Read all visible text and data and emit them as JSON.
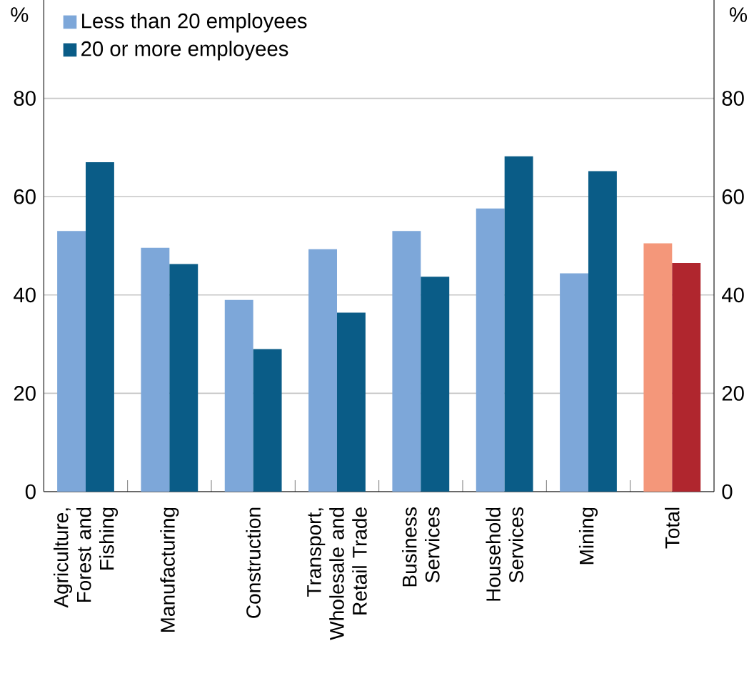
{
  "chart_data": {
    "type": "bar",
    "ylabel": "%",
    "y2label": "%",
    "categories": [
      "Agriculture, Forest and Fishing",
      "Manufacturing",
      "Construction",
      "Transport, Wholesale and Retail Trade",
      "Business Services",
      "Household Services",
      "Mining",
      "Total"
    ],
    "series": [
      {
        "name": "Less than 20 employees",
        "color": "#7da7d9",
        "colors": [
          "#7da7d9",
          "#7da7d9",
          "#7da7d9",
          "#7da7d9",
          "#7da7d9",
          "#7da7d9",
          "#7da7d9",
          "#f4977a"
        ],
        "values": [
          53.0,
          49.6,
          39.0,
          49.3,
          53.0,
          57.6,
          44.4,
          50.5
        ]
      },
      {
        "name": "20 or more employees",
        "color": "#0a5c87",
        "colors": [
          "#0a5c87",
          "#0a5c87",
          "#0a5c87",
          "#0a5c87",
          "#0a5c87",
          "#0a5c87",
          "#0a5c87",
          "#b0262e"
        ],
        "values": [
          67.0,
          46.3,
          29.0,
          36.4,
          43.7,
          68.2,
          65.2,
          46.5
        ]
      }
    ],
    "ylim": [
      0,
      100
    ],
    "yticks": [
      0,
      20,
      40,
      60,
      80
    ],
    "y2lim": [
      0,
      100
    ],
    "y2ticks": [
      0,
      20,
      40,
      60,
      80
    ],
    "grid": "y",
    "legend": "top left"
  }
}
